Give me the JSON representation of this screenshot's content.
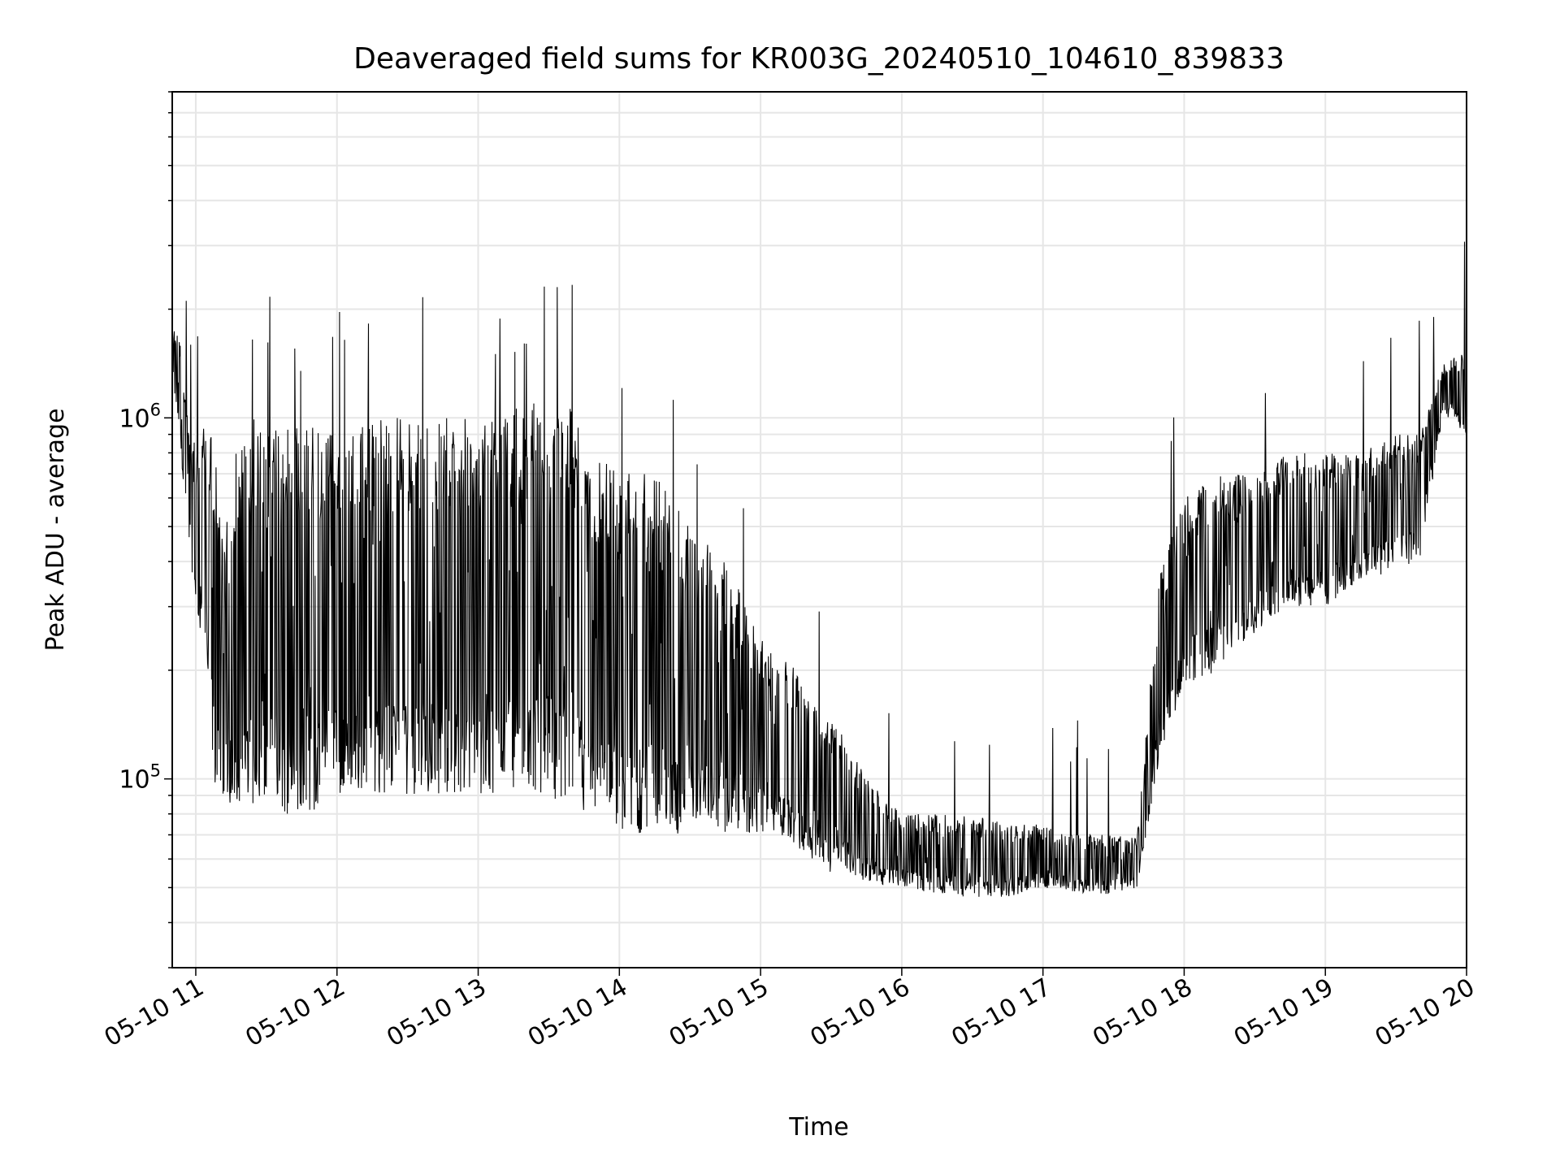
{
  "chart_data": {
    "type": "line",
    "title": "Deaveraged field sums for KR003G_20240510_104610_839833",
    "xlabel": "Time",
    "ylabel": "Peak ADU - average",
    "y_scale": "log",
    "ylim": [
      30000,
      8000000
    ],
    "xlim": [
      "2024-05-10 10:50",
      "2024-05-10 20:00"
    ],
    "x_ticks": [
      "05-10 11",
      "05-10 12",
      "05-10 13",
      "05-10 14",
      "05-10 15",
      "05-10 16",
      "05-10 17",
      "05-10 18",
      "05-10 19",
      "05-10 20"
    ],
    "y_ticks": [
      {
        "base": "10",
        "exp": "5",
        "value": 100000
      },
      {
        "base": "10",
        "exp": "6",
        "value": 1000000
      }
    ],
    "grid": true,
    "line_color": "#000000",
    "series": [
      {
        "x": [
          "2024-05-10 10:50",
          "2024-05-10 10:53",
          "2024-05-10 10:56",
          "2024-05-10 10:59",
          "2024-05-10 11:02",
          "2024-05-10 11:05",
          "2024-05-10 11:08",
          "2024-05-10 11:11",
          "2024-05-10 11:14",
          "2024-05-10 11:17",
          "2024-05-10 11:20",
          "2024-05-10 11:25",
          "2024-05-10 11:30",
          "2024-05-10 11:35",
          "2024-05-10 11:40",
          "2024-05-10 11:45",
          "2024-05-10 11:50",
          "2024-05-10 11:55",
          "2024-05-10 12:00",
          "2024-05-10 12:10",
          "2024-05-10 12:20",
          "2024-05-10 12:30",
          "2024-05-10 12:40",
          "2024-05-10 12:50",
          "2024-05-10 13:00",
          "2024-05-10 13:10",
          "2024-05-10 13:20",
          "2024-05-10 13:30",
          "2024-05-10 13:40",
          "2024-05-10 13:50",
          "2024-05-10 14:00",
          "2024-05-10 14:15",
          "2024-05-10 14:30",
          "2024-05-10 14:45",
          "2024-05-10 15:00",
          "2024-05-10 15:15",
          "2024-05-10 15:30",
          "2024-05-10 15:45",
          "2024-05-10 16:00",
          "2024-05-10 16:15",
          "2024-05-10 16:30",
          "2024-05-10 16:45",
          "2024-05-10 17:00",
          "2024-05-10 17:15",
          "2024-05-10 17:30",
          "2024-05-10 17:40",
          "2024-05-10 17:50",
          "2024-05-10 18:00",
          "2024-05-10 18:15",
          "2024-05-10 18:30",
          "2024-05-10 18:45",
          "2024-05-10 19:00",
          "2024-05-10 19:15",
          "2024-05-10 19:30",
          "2024-05-10 19:40",
          "2024-05-10 19:50",
          "2024-05-10 19:55",
          "2024-05-10 19:58",
          "2024-05-10 20:00"
        ],
        "lower": [
          1300000,
          900000,
          500000,
          350000,
          250000,
          200000,
          90000,
          90000,
          85000,
          85000,
          80000,
          80000,
          80000,
          80000,
          80000,
          80000,
          80000,
          85000,
          90000,
          90000,
          90000,
          90000,
          90000,
          90000,
          90000,
          90000,
          90000,
          90000,
          80000,
          75000,
          70000,
          70000,
          70000,
          70000,
          70000,
          65000,
          55000,
          52000,
          50000,
          48000,
          47000,
          47000,
          50000,
          48000,
          48000,
          50000,
          120000,
          180000,
          200000,
          250000,
          300000,
          300000,
          350000,
          380000,
          400000,
          1000000,
          1000000,
          900000,
          900000
        ],
        "upper": [
          1800000,
          1700000,
          1100000,
          900000,
          900000,
          1000000,
          800000,
          600000,
          500000,
          800000,
          900000,
          1000000,
          1000000,
          950000,
          950000,
          950000,
          950000,
          950000,
          900000,
          950000,
          1000000,
          1000000,
          1000000,
          1000000,
          1000000,
          1000000,
          1100000,
          1200000,
          1100000,
          800000,
          700000,
          700000,
          500000,
          400000,
          250000,
          200000,
          150000,
          100000,
          80000,
          80000,
          80000,
          75000,
          75000,
          70000,
          70000,
          70000,
          400000,
          600000,
          700000,
          700000,
          800000,
          800000,
          800000,
          900000,
          900000,
          1400000,
          1500000,
          1500000,
          1300000
        ]
      }
    ]
  }
}
